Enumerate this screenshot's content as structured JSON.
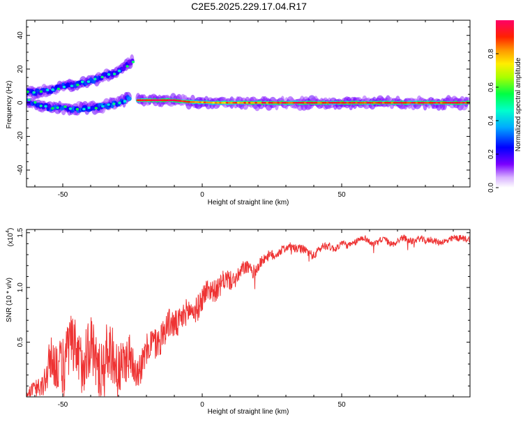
{
  "figure_title": "C2E5.2025.229.17.04.R17",
  "colors": {
    "background": "#ffffff",
    "axis": "#000000",
    "snr_line": "#ee3333",
    "spectrum_palette": [
      "#ffffff",
      "#cc99ff",
      "#7700ff",
      "#0000ff",
      "#00ccff",
      "#00ff66",
      "#ccff00",
      "#ff8800",
      "#ff0033"
    ]
  },
  "chart_data": [
    {
      "type": "heatmap",
      "xlabel": "Height of straight line (km)",
      "ylabel": "Frequency (Hz)",
      "xlim": [
        -63,
        96
      ],
      "ylim": [
        -50,
        49
      ],
      "x_ticks": [
        -50,
        0,
        50
      ],
      "y_ticks": [
        -40,
        -20,
        0,
        20,
        40
      ],
      "grid": false,
      "colorbar": {
        "label": "Normalized spectral amplitude",
        "range": [
          0.0,
          1.0
        ],
        "ticks": [
          0.0,
          0.2,
          0.4,
          0.6,
          0.8
        ]
      },
      "ridges": [
        {
          "points": [
            [
              -63,
              6
            ],
            [
              -55,
              7
            ],
            [
              -50,
              10
            ],
            [
              -45,
              11
            ],
            [
              -40,
              13
            ],
            [
              -35,
              16
            ],
            [
              -30,
              19
            ],
            [
              -25,
              25
            ]
          ],
          "intensity": [
            0.4,
            0.45,
            0.45,
            0.4,
            0.45,
            0.5,
            0.4,
            0.25
          ]
        },
        {
          "points": [
            [
              -63,
              1
            ],
            [
              -55,
              -3
            ],
            [
              -50,
              -3
            ],
            [
              -45,
              -4
            ],
            [
              -40,
              -3
            ],
            [
              -35,
              -2
            ],
            [
              -30,
              0
            ],
            [
              -26,
              3
            ]
          ],
          "intensity": [
            0.45,
            0.45,
            0.5,
            0.5,
            0.45,
            0.5,
            0.5,
            0.5
          ]
        },
        {
          "points": [
            [
              -23,
              1.5
            ],
            [
              -10,
              1.5
            ],
            [
              -5,
              0.5
            ],
            [
              5,
              0
            ],
            [
              15,
              0
            ],
            [
              30,
              0
            ],
            [
              50,
              0
            ],
            [
              70,
              0
            ],
            [
              96,
              0
            ]
          ],
          "intensity": [
            0.95,
            0.95,
            0.85,
            0.8,
            0.85,
            0.9,
            0.9,
            0.9,
            0.9
          ]
        }
      ]
    },
    {
      "type": "line",
      "xlabel": "Height of straight line (km)",
      "ylabel": "SNR (10 * v/v)",
      "y_multiplier": "(x10^4)",
      "xlim": [
        -63,
        96
      ],
      "ylim": [
        0,
        1.53
      ],
      "x_ticks": [
        -50,
        0,
        50
      ],
      "y_ticks": [
        0.5,
        1.0,
        1.5
      ],
      "y_tick_labels": [
        "0.5",
        "1.0",
        "1.5"
      ],
      "grid": false,
      "series": [
        {
          "color": "#ee3333",
          "x": [
            -63,
            -58,
            -55,
            -50,
            -45,
            -40,
            -35,
            -30,
            -25,
            -21,
            -18,
            -15,
            -12,
            -10,
            -8,
            -5,
            -3,
            0,
            2,
            5,
            8,
            10,
            12,
            15,
            18,
            20,
            22,
            25,
            28,
            30,
            32,
            35,
            38,
            40,
            42,
            45,
            48,
            50,
            52,
            55,
            58,
            60,
            62,
            65,
            68,
            70,
            72,
            75,
            78,
            80,
            82,
            85,
            88,
            90,
            92,
            96
          ],
          "y": [
            0.02,
            0.1,
            0.25,
            0.35,
            0.4,
            0.38,
            0.35,
            0.32,
            0.3,
            0.33,
            0.48,
            0.56,
            0.63,
            0.68,
            0.72,
            0.75,
            0.8,
            0.9,
            0.95,
            1.0,
            1.05,
            1.05,
            1.1,
            1.17,
            1.15,
            1.2,
            1.25,
            1.3,
            1.33,
            1.35,
            1.38,
            1.35,
            1.32,
            1.3,
            1.35,
            1.38,
            1.36,
            1.4,
            1.38,
            1.42,
            1.45,
            1.42,
            1.4,
            1.44,
            1.4,
            1.42,
            1.45,
            1.43,
            1.44,
            1.42,
            1.45,
            1.4,
            1.43,
            1.46,
            1.44,
            1.45
          ],
          "noise": [
            0.03,
            0.1,
            0.2,
            0.28,
            0.3,
            0.3,
            0.28,
            0.25,
            0.2,
            0.15,
            0.15,
            0.15,
            0.14,
            0.14,
            0.13,
            0.12,
            0.12,
            0.12,
            0.11,
            0.1,
            0.1,
            0.09,
            0.08,
            0.07,
            0.06,
            0.06,
            0.05,
            0.05,
            0.04,
            0.04,
            0.04,
            0.04,
            0.04,
            0.04,
            0.04,
            0.04,
            0.03,
            0.03,
            0.03,
            0.03,
            0.03,
            0.03,
            0.03,
            0.03,
            0.03,
            0.03,
            0.03,
            0.03,
            0.03,
            0.03,
            0.03,
            0.03,
            0.03,
            0.03,
            0.03,
            0.03
          ]
        }
      ]
    }
  ]
}
